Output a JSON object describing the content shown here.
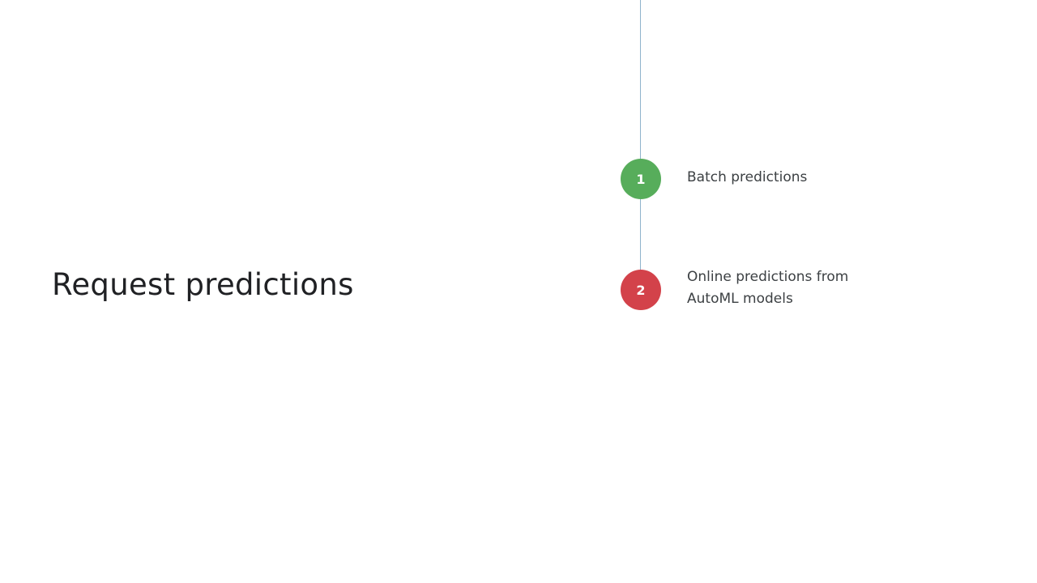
{
  "title": "Request predictions",
  "colors": {
    "step1": "#57ad5b",
    "step2": "#d3424a",
    "line": "#8fb3cc",
    "text": "#3c4043"
  },
  "steps": [
    {
      "number": "1",
      "label": "Batch predictions"
    },
    {
      "number": "2",
      "label_line1": "Online predictions from",
      "label_line2": "AutoML models"
    }
  ]
}
